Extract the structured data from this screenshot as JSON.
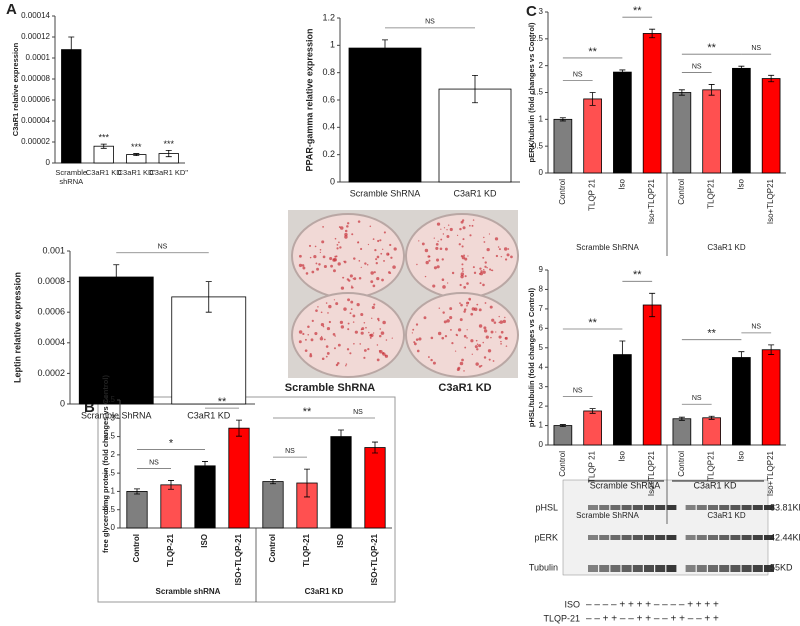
{
  "panel_labels": [
    "A",
    "B",
    "C"
  ],
  "photo_captions": [
    "Scramble ShRNA",
    "C3aR1 KD"
  ],
  "blot": {
    "group_labels": [
      "Scramble ShRNA",
      "C3aR1 KD"
    ],
    "bands": [
      {
        "name": "pHSL",
        "size": "83.81KD"
      },
      {
        "name": "pERK",
        "size": "42.44KD"
      },
      {
        "name": "Tubulin",
        "size": "55KD"
      }
    ],
    "treatments": [
      {
        "name": "ISO",
        "signs": "– – – – + + + + – – – – + + + +"
      },
      {
        "name": "TLQP-21",
        "signs": "– – + + – – + + – – + + – – + +"
      }
    ]
  },
  "chart_data": [
    {
      "type": "bar",
      "ylabel": "C3aR1 relative expression",
      "categories": [
        "Scramble shRNA",
        "C3aR1 KD",
        "C3aR1 KD'",
        "C3aR1 KD''"
      ],
      "values": [
        0.000108,
        1.6e-05,
        8e-06,
        9e-06
      ],
      "errors": [
        1.2e-05,
        2e-06,
        1e-06,
        3e-06
      ],
      "colors": [
        "#000000",
        "#ffffff",
        "#ffffff",
        "#ffffff"
      ],
      "ylim": [
        0,
        0.00014
      ],
      "yticks": [
        0,
        2e-05,
        4e-05,
        6e-05,
        8e-05,
        0.0001,
        0.00012,
        0.00014
      ],
      "annotations": [
        null,
        "***",
        "***",
        "***"
      ]
    },
    {
      "type": "bar",
      "ylabel": "PPAR-gamma relative expression",
      "categories": [
        "Scramble ShRNA",
        "C3aR1 KD"
      ],
      "values": [
        0.98,
        0.68
      ],
      "errors": [
        0.06,
        0.1
      ],
      "colors": [
        "#000000",
        "#ffffff"
      ],
      "ylim": [
        0,
        1.2
      ],
      "yticks": [
        0,
        0.2,
        0.4,
        0.6,
        0.8,
        1,
        1.2
      ],
      "brackets": [
        "NS"
      ]
    },
    {
      "type": "bar",
      "ylabel": "Leptin relative expression",
      "categories": [
        "Scramble ShRNA",
        "C3aR1 KD"
      ],
      "values": [
        0.00083,
        0.0007
      ],
      "errors": [
        8e-05,
        0.0001
      ],
      "colors": [
        "#000000",
        "#ffffff"
      ],
      "ylim": [
        0,
        0.001
      ],
      "yticks": [
        0,
        0.0002,
        0.0004,
        0.0006,
        0.0008,
        0.001
      ],
      "brackets": [
        "NS"
      ]
    },
    {
      "type": "bar",
      "ylabel": "free glycerol/mg protein (fold changes vs Control)",
      "categories": [
        "Control",
        "TLQP-21",
        "ISO",
        "ISO+TLQP-21",
        "Control",
        "TLQP-21",
        "ISO",
        "ISO+TLQP-21"
      ],
      "group_labels": [
        "Scramble shRNA",
        "C3aR1 KD"
      ],
      "values": [
        1.0,
        1.18,
        1.7,
        2.73,
        1.27,
        1.23,
        2.5,
        2.2
      ],
      "errors": [
        0.07,
        0.12,
        0.12,
        0.22,
        0.06,
        0.38,
        0.18,
        0.15
      ],
      "colors": [
        "#7f7f7f",
        "#ff5050",
        "#000000",
        "#ff0000",
        "#7f7f7f",
        "#ff5050",
        "#000000",
        "#ff0000"
      ],
      "ylim": [
        0,
        3.5
      ],
      "yticks": [
        0,
        0.5,
        1,
        1.5,
        2,
        2.5,
        3,
        3.5
      ],
      "brackets": [
        "NS",
        "*",
        "**",
        "NS",
        "**",
        "NS"
      ]
    },
    {
      "type": "bar",
      "ylabel": "pERK/tubulin (fold changes vs Control)",
      "categories": [
        "Control",
        "TLQP 21",
        "Iso",
        "Iso+TLQP21",
        "Control",
        "TLQP21",
        "Iso",
        "Iso+TLQP21"
      ],
      "group_labels": [
        "Scramble ShRNA",
        "C3aR1 KD"
      ],
      "values": [
        1.0,
        1.38,
        1.88,
        2.6,
        1.5,
        1.55,
        1.95,
        1.76
      ],
      "errors": [
        0.03,
        0.12,
        0.04,
        0.08,
        0.05,
        0.1,
        0.04,
        0.06
      ],
      "colors": [
        "#7f7f7f",
        "#ff5050",
        "#000000",
        "#ff0000",
        "#7f7f7f",
        "#ff5050",
        "#000000",
        "#ff0000"
      ],
      "ylim": [
        0,
        3
      ],
      "yticks": [
        0,
        0.5,
        1,
        1.5,
        2,
        2.5,
        3
      ],
      "brackets": [
        "NS",
        "**",
        "**",
        "NS",
        "**",
        "NS"
      ]
    },
    {
      "type": "bar",
      "ylabel": "pHSL/tubulin (fold changes vs Control)",
      "categories": [
        "Control",
        "TLQP 21",
        "Iso",
        "Iso+TLQP21",
        "Control",
        "TLQP21",
        "Iso",
        "Iso+TLQP21"
      ],
      "group_labels": [
        "Scramble ShRNA",
        "C3aR1 KD"
      ],
      "values": [
        1.0,
        1.75,
        4.65,
        7.2,
        1.35,
        1.4,
        4.5,
        4.9
      ],
      "errors": [
        0.05,
        0.12,
        0.7,
        0.6,
        0.08,
        0.08,
        0.3,
        0.25
      ],
      "colors": [
        "#7f7f7f",
        "#ff5050",
        "#000000",
        "#ff0000",
        "#7f7f7f",
        "#ff5050",
        "#000000",
        "#ff0000"
      ],
      "ylim": [
        0,
        9
      ],
      "yticks": [
        0,
        1,
        2,
        3,
        4,
        5,
        6,
        7,
        8,
        9
      ],
      "brackets": [
        "NS",
        "**",
        "**",
        "NS",
        "**",
        "NS"
      ]
    }
  ]
}
